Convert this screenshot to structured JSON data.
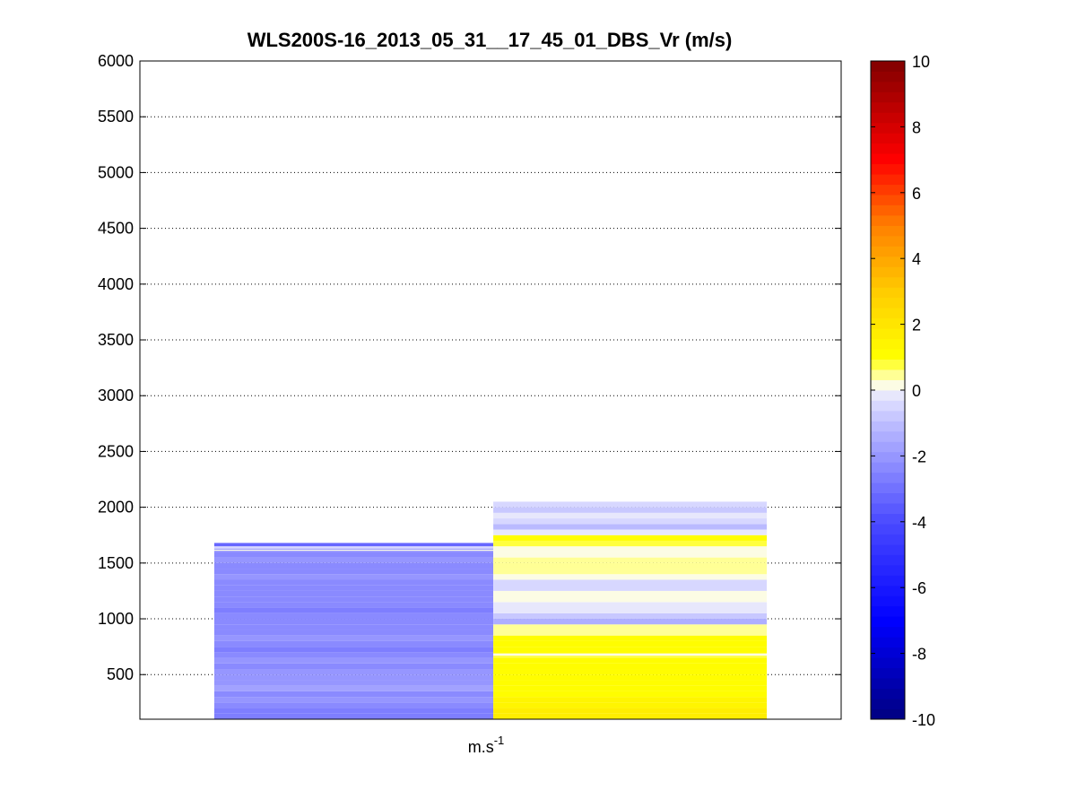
{
  "chart_data": {
    "type": "heatmap",
    "title": "WLS200S-16_2013_05_31__17_45_01_DBS_Vr (m/s)",
    "xlabel": "m.s",
    "xlabel_superscript": "-1",
    "ylabel": "",
    "ylim": [
      100,
      6000
    ],
    "xlim": [
      0,
      1
    ],
    "yticks": [
      500,
      1000,
      1500,
      2000,
      2500,
      3000,
      3500,
      4000,
      4500,
      5000,
      5500,
      6000
    ],
    "ytick_labels": [
      "500",
      "1000",
      "1500",
      "2000",
      "2500",
      "3000",
      "3500",
      "4000",
      "4500",
      "5000",
      "5500",
      "6000"
    ],
    "grid": "y-dotted",
    "colorbar": {
      "range": [
        -10,
        10
      ],
      "ticks": [
        -10,
        -8,
        -6,
        -4,
        -2,
        0,
        2,
        4,
        6,
        8,
        10
      ],
      "tick_labels": [
        "-10",
        "-8",
        "-6",
        "-4",
        "-2",
        "0",
        "2",
        "4",
        "6",
        "8",
        "10"
      ],
      "colormap": "blue-white-yellow-red"
    },
    "columns": [
      {
        "x_range": [
          0.106,
          0.504
        ],
        "cells": [
          {
            "y": [
              100,
              150
            ],
            "value": -2.8
          },
          {
            "y": [
              150,
              200
            ],
            "value": -2.6
          },
          {
            "y": [
              200,
              250
            ],
            "value": -2.4
          },
          {
            "y": [
              250,
              300
            ],
            "value": -2.0
          },
          {
            "y": [
              300,
              350
            ],
            "value": -2.2
          },
          {
            "y": [
              350,
              400
            ],
            "value": -1.8
          },
          {
            "y": [
              400,
              450
            ],
            "value": -2.0
          },
          {
            "y": [
              450,
              500
            ],
            "value": -1.9
          },
          {
            "y": [
              500,
              550
            ],
            "value": -2.1
          },
          {
            "y": [
              550,
              600
            ],
            "value": -2.3
          },
          {
            "y": [
              600,
              650
            ],
            "value": -2.0
          },
          {
            "y": [
              650,
              700
            ],
            "value": -2.4
          },
          {
            "y": [
              700,
              750
            ],
            "value": -2.6
          },
          {
            "y": [
              750,
              800
            ],
            "value": -2.3
          },
          {
            "y": [
              800,
              850
            ],
            "value": -2.1
          },
          {
            "y": [
              850,
              900
            ],
            "value": -2.2
          },
          {
            "y": [
              900,
              950
            ],
            "value": -2.4
          },
          {
            "y": [
              950,
              1000
            ],
            "value": -2.3
          },
          {
            "y": [
              1000,
              1050
            ],
            "value": -2.5
          },
          {
            "y": [
              1050,
              1100
            ],
            "value": -2.7
          },
          {
            "y": [
              1100,
              1150
            ],
            "value": -2.5
          },
          {
            "y": [
              1150,
              1200
            ],
            "value": -2.3
          },
          {
            "y": [
              1200,
              1250
            ],
            "value": -2.2
          },
          {
            "y": [
              1250,
              1300
            ],
            "value": -2.4
          },
          {
            "y": [
              1300,
              1350
            ],
            "value": -2.3
          },
          {
            "y": [
              1350,
              1400
            ],
            "value": -2.1
          },
          {
            "y": [
              1400,
              1450
            ],
            "value": -2.2
          },
          {
            "y": [
              1450,
              1500
            ],
            "value": -2.3
          },
          {
            "y": [
              1500,
              1550
            ],
            "value": -2.1
          },
          {
            "y": [
              1550,
              1600
            ],
            "value": -2.4
          },
          {
            "y": [
              1600,
              1610
            ],
            "value": -2.2
          },
          {
            "y": [
              1610,
              1620
            ],
            "value": 0.0
          },
          {
            "y": [
              1620,
              1630
            ],
            "value": -2.0
          },
          {
            "y": [
              1630,
              1650
            ],
            "value": -0.4
          },
          {
            "y": [
              1650,
              1680
            ],
            "value": -3.3
          }
        ]
      },
      {
        "x_range": [
          0.504,
          0.894
        ],
        "cells": [
          {
            "y": [
              100,
              150
            ],
            "value": 1.8
          },
          {
            "y": [
              150,
              200
            ],
            "value": 1.6
          },
          {
            "y": [
              200,
              250
            ],
            "value": 1.4
          },
          {
            "y": [
              250,
              300
            ],
            "value": 1.3
          },
          {
            "y": [
              300,
              350
            ],
            "value": 1.2
          },
          {
            "y": [
              350,
              400
            ],
            "value": 1.1
          },
          {
            "y": [
              400,
              450
            ],
            "value": 1.0
          },
          {
            "y": [
              450,
              500
            ],
            "value": 1.0
          },
          {
            "y": [
              500,
              550
            ],
            "value": 1.1
          },
          {
            "y": [
              550,
              600
            ],
            "value": 1.0
          },
          {
            "y": [
              600,
              650
            ],
            "value": 1.0
          },
          {
            "y": [
              650,
              670
            ],
            "value": 0.9
          },
          {
            "y": [
              670,
              690
            ],
            "value": 0.3
          },
          {
            "y": [
              690,
              750
            ],
            "value": 1.0
          },
          {
            "y": [
              750,
              800
            ],
            "value": 1.1
          },
          {
            "y": [
              800,
              850
            ],
            "value": 1.0
          },
          {
            "y": [
              850,
              900
            ],
            "value": 0.6
          },
          {
            "y": [
              900,
              950
            ],
            "value": 0.4
          },
          {
            "y": [
              950,
              1000
            ],
            "value": -1.4
          },
          {
            "y": [
              1000,
              1050
            ],
            "value": -0.8
          },
          {
            "y": [
              1050,
              1150
            ],
            "value": -0.3
          },
          {
            "y": [
              1150,
              1250
            ],
            "value": 0.0
          },
          {
            "y": [
              1250,
              1350
            ],
            "value": -0.4
          },
          {
            "y": [
              1350,
              1400
            ],
            "value": 0.0
          },
          {
            "y": [
              1400,
              1450
            ],
            "value": 0.4
          },
          {
            "y": [
              1450,
              1500
            ],
            "value": 0.5
          },
          {
            "y": [
              1500,
              1550
            ],
            "value": 0.4
          },
          {
            "y": [
              1550,
              1600
            ],
            "value": 0.0
          },
          {
            "y": [
              1600,
              1650
            ],
            "value": 0.3
          },
          {
            "y": [
              1650,
              1700
            ],
            "value": 0.8
          },
          {
            "y": [
              1700,
              1750
            ],
            "value": 1.0
          },
          {
            "y": [
              1750,
              1800
            ],
            "value": -0.3
          },
          {
            "y": [
              1800,
              1850
            ],
            "value": -1.0
          },
          {
            "y": [
              1850,
              1900
            ],
            "value": -0.4
          },
          {
            "y": [
              1900,
              1950
            ],
            "value": -0.3
          },
          {
            "y": [
              1950,
              2000
            ],
            "value": -0.9
          },
          {
            "y": [
              2000,
              2050
            ],
            "value": -0.4
          }
        ]
      }
    ]
  }
}
